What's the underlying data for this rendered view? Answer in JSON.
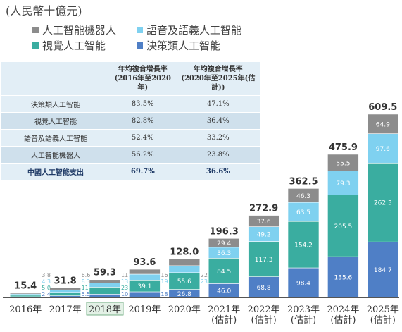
{
  "unit_label": "(人民幣十億元)",
  "colors": {
    "robot": "#8c8c8c",
    "speech": "#7fd1f0",
    "vision": "#3aada0",
    "decision": "#4f7fc6"
  },
  "legend": [
    {
      "key": "robot",
      "label": "人工智能機器人"
    },
    {
      "key": "speech",
      "label": "語音及語義人工智能"
    },
    {
      "key": "vision",
      "label": "視覺人工智能"
    },
    {
      "key": "decision",
      "label": "決策類人工智能"
    }
  ],
  "cagr_table": {
    "headers": [
      "",
      "年均複合增長率\n(2016年至2020年)",
      "年均複合增長率\n(2020年至2025年(估計))"
    ],
    "rows": [
      {
        "name": "決策類人工智能",
        "c1": "83.5%",
        "c2": "47.1%"
      },
      {
        "name": "視覺人工智能",
        "c1": "82.8%",
        "c2": "36.4%"
      },
      {
        "name": "語音及語義人工智能",
        "c1": "52.4%",
        "c2": "33.2%"
      },
      {
        "name": "人工智能機器人",
        "c1": "56.2%",
        "c2": "23.8%"
      },
      {
        "name": "中國人工智能支出",
        "c1": "69.7%",
        "c2": "36.6%"
      }
    ]
  },
  "chart_data": {
    "type": "bar",
    "stacked": true,
    "categories": [
      "2016年",
      "2017年",
      "2018年",
      "2019年",
      "2020年",
      "2021年\n(估計)",
      "2022年\n(估計)",
      "2023年\n(估計)",
      "2024年\n(估計)",
      "2025年\n(估計)"
    ],
    "highlighted_category": "2018年",
    "series": [
      {
        "name": "決策類人工智能",
        "key": "decision",
        "values": [
          2.4,
          5.5,
          10.9,
          18.8,
          26.8,
          46.0,
          68.8,
          98.4,
          135.6,
          184.7
        ]
      },
      {
        "name": "視覺人工智能",
        "key": "vision",
        "values": [
          5.0,
          11.4,
          23.4,
          39.1,
          55.6,
          84.5,
          117.3,
          154.2,
          205.5,
          262.3
        ]
      },
      {
        "name": "語音及語義人工智能",
        "key": "speech",
        "values": [
          4.3,
          8.3,
          13.3,
          19.4,
          23.3,
          36.3,
          49.2,
          63.5,
          79.3,
          97.6
        ]
      },
      {
        "name": "人工智能機器人",
        "key": "robot",
        "values": [
          3.8,
          6.6,
          11.6,
          16.3,
          22.3,
          29.4,
          37.6,
          46.3,
          55.5,
          64.9
        ]
      }
    ],
    "totals": [
      "15.4",
      "31.8",
      "59.3",
      "93.6",
      "128.0",
      "196.3",
      "272.9",
      "362.5",
      "475.9",
      "609.5"
    ],
    "value_labels": [
      [
        "2.4",
        "5.5",
        "10.9",
        "18.8",
        "26.8",
        "46.0",
        "68.8",
        "98.4",
        "135.6",
        "184.7"
      ],
      [
        "5.0",
        "11.4",
        "23.4",
        "39.1",
        "55.6",
        "84.5",
        "117.3",
        "154.2",
        "205.5",
        "262.3"
      ],
      [
        "4.3",
        "8.3",
        "13.3",
        "19.4",
        "23.3",
        "36.3",
        "49.2",
        "63.5",
        "79.3",
        "97.6"
      ],
      [
        "3.8",
        "6.6",
        "11.6",
        "16.3",
        "22.3",
        "29.4",
        "37.6",
        "46.3",
        "55.5",
        "64.9"
      ]
    ],
    "ylim": [
      0,
      620
    ]
  }
}
